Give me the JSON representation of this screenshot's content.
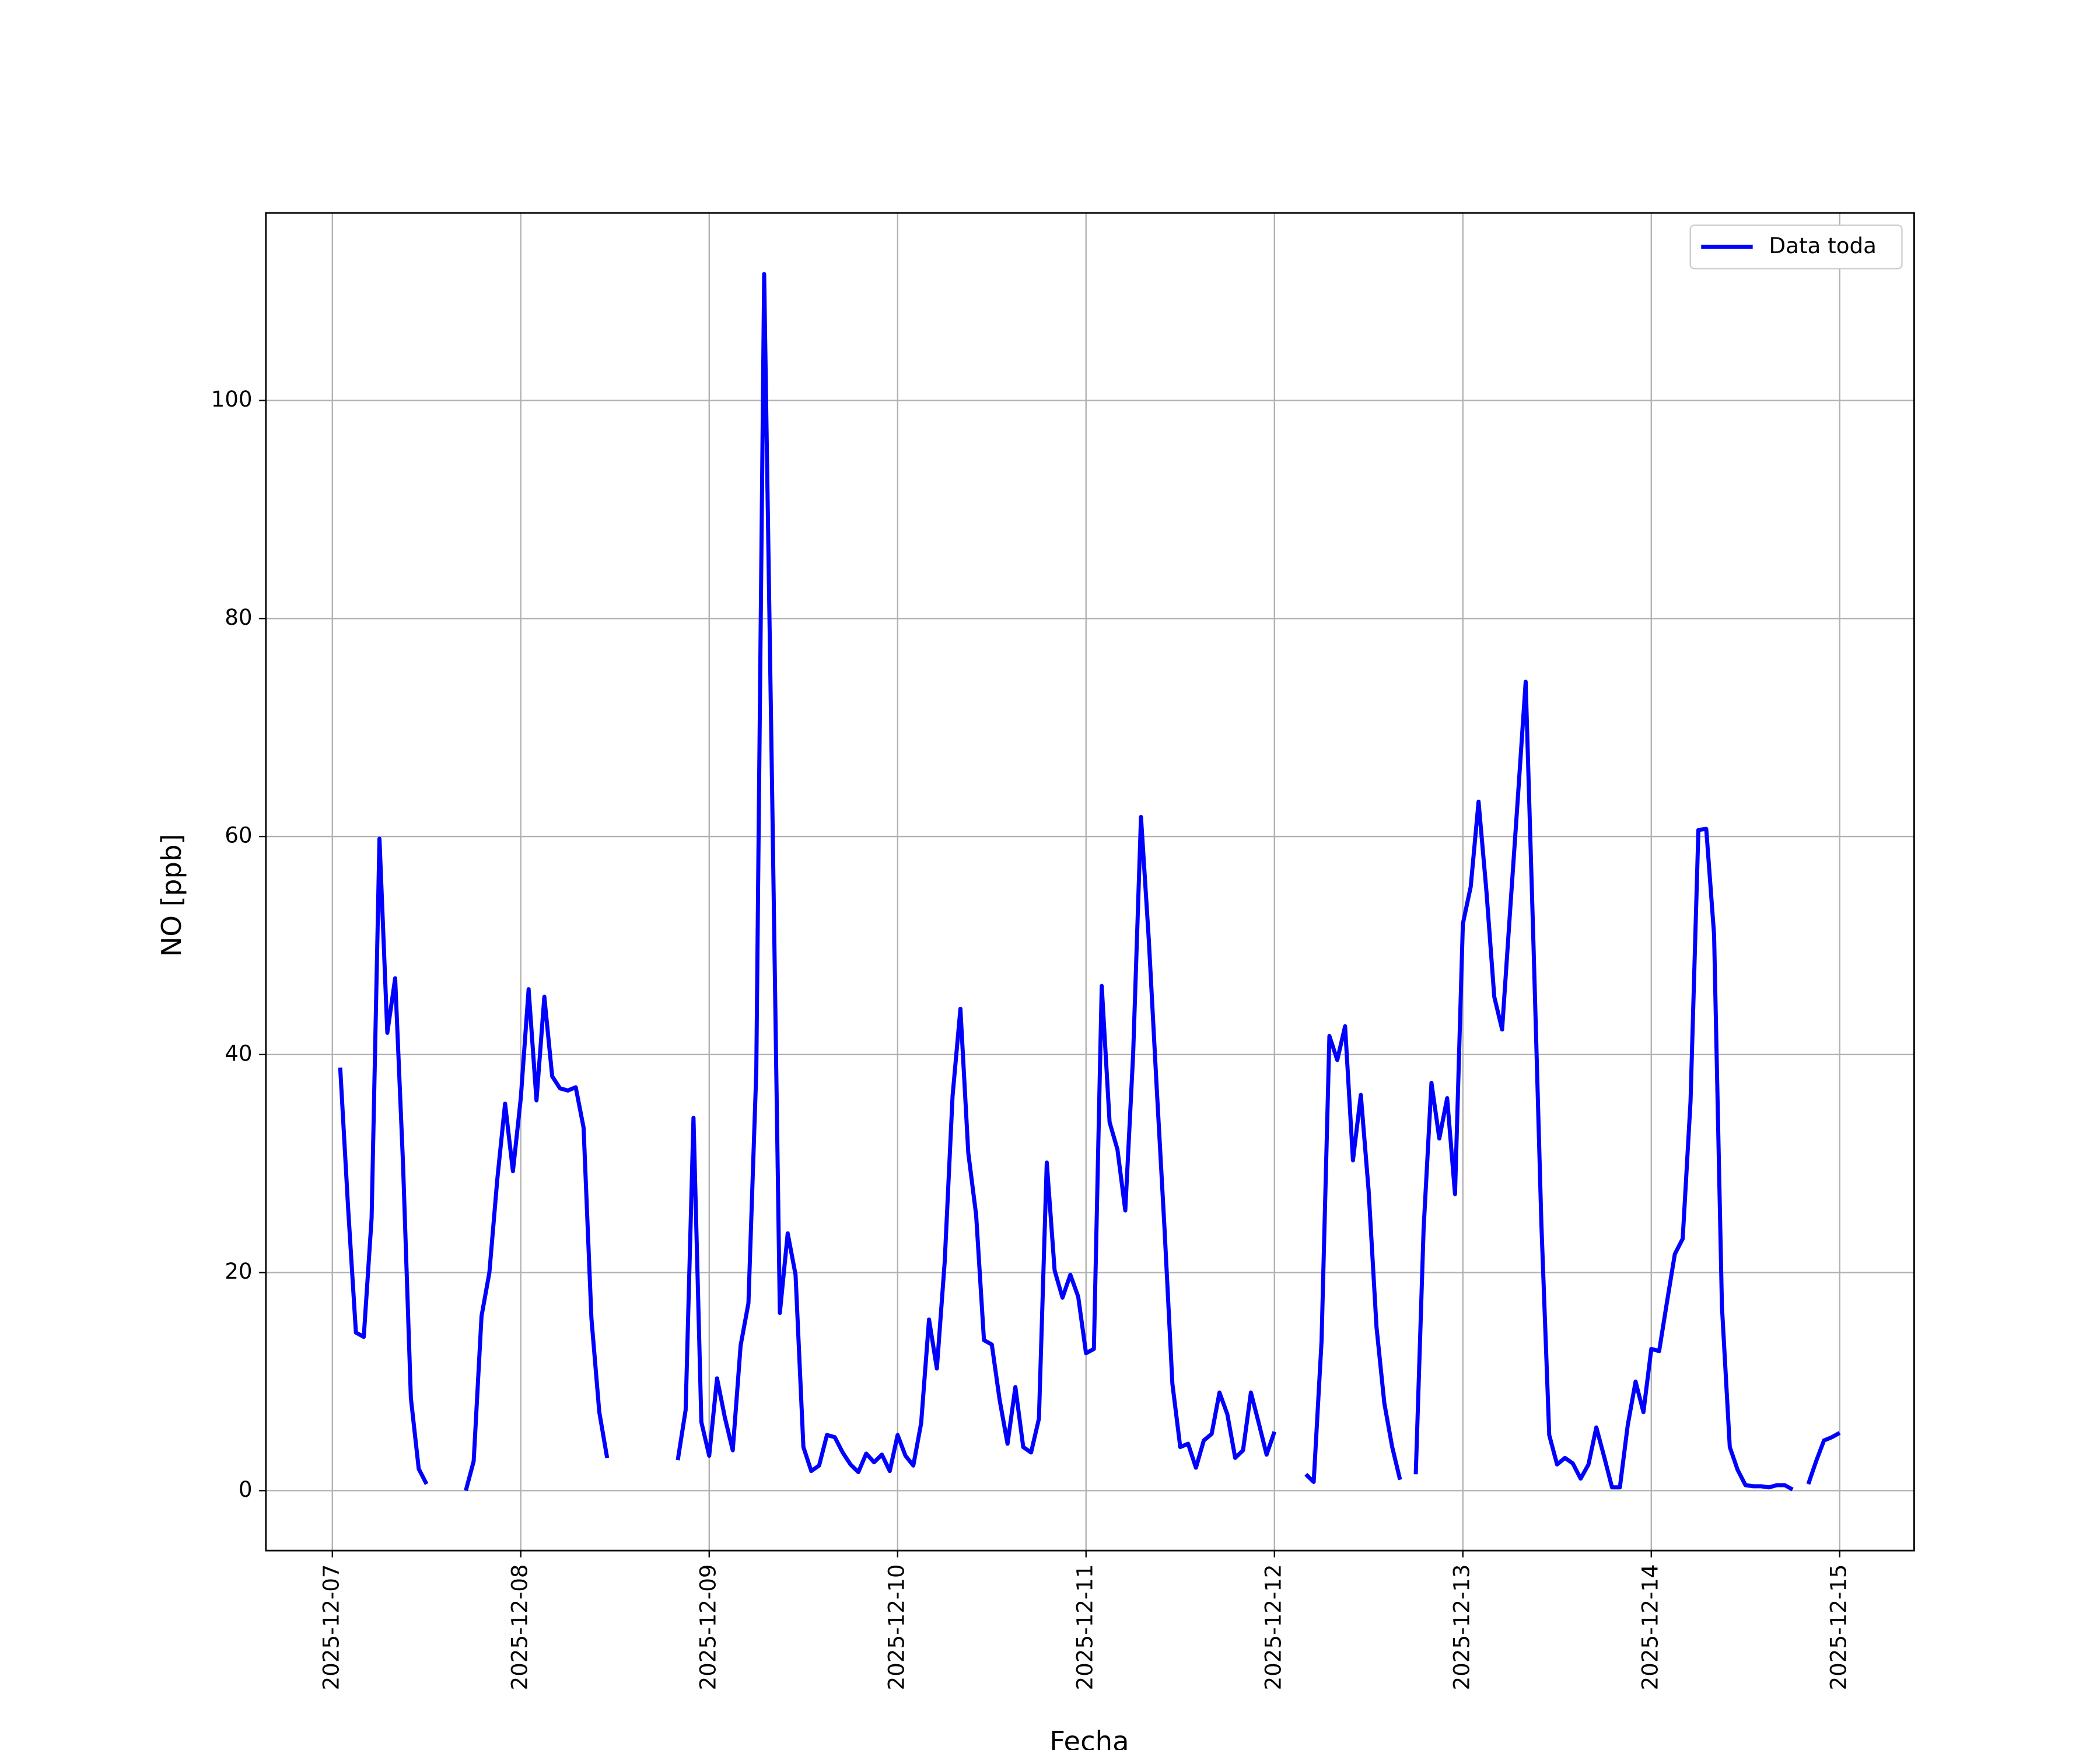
{
  "chart_data": {
    "type": "line",
    "xlabel": "Fecha",
    "ylabel": "NO [ppb]",
    "x": [
      "2025-12-07 01:00",
      "2025-12-07 02:00",
      "2025-12-07 03:00",
      "2025-12-07 04:00",
      "2025-12-07 05:00",
      "2025-12-07 06:00",
      "2025-12-07 07:00",
      "2025-12-07 08:00",
      "2025-12-07 09:00",
      "2025-12-07 10:00",
      "2025-12-07 11:00",
      "2025-12-07 12:00",
      "2025-12-07 13:00",
      "2025-12-07 14:00",
      "2025-12-07 15:00",
      "2025-12-07 16:00",
      "2025-12-07 17:00",
      "2025-12-07 18:00",
      "2025-12-07 19:00",
      "2025-12-07 20:00",
      "2025-12-07 21:00",
      "2025-12-07 22:00",
      "2025-12-07 23:00",
      "2025-12-08 00:00",
      "2025-12-08 01:00",
      "2025-12-08 02:00",
      "2025-12-08 03:00",
      "2025-12-08 04:00",
      "2025-12-08 05:00",
      "2025-12-08 06:00",
      "2025-12-08 07:00",
      "2025-12-08 08:00",
      "2025-12-08 09:00",
      "2025-12-08 10:00",
      "2025-12-08 11:00",
      "2025-12-08 12:00",
      "2025-12-08 13:00",
      "2025-12-08 14:00",
      "2025-12-08 15:00",
      "2025-12-08 16:00",
      "2025-12-08 17:00",
      "2025-12-08 18:00",
      "2025-12-08 19:00",
      "2025-12-08 20:00",
      "2025-12-08 21:00",
      "2025-12-08 22:00",
      "2025-12-08 23:00",
      "2025-12-09 00:00",
      "2025-12-09 01:00",
      "2025-12-09 02:00",
      "2025-12-09 03:00",
      "2025-12-09 04:00",
      "2025-12-09 05:00",
      "2025-12-09 06:00",
      "2025-12-09 07:00",
      "2025-12-09 08:00",
      "2025-12-09 09:00",
      "2025-12-09 10:00",
      "2025-12-09 11:00",
      "2025-12-09 12:00",
      "2025-12-09 13:00",
      "2025-12-09 14:00",
      "2025-12-09 15:00",
      "2025-12-09 16:00",
      "2025-12-09 17:00",
      "2025-12-09 18:00",
      "2025-12-09 19:00",
      "2025-12-09 20:00",
      "2025-12-09 21:00",
      "2025-12-09 22:00",
      "2025-12-09 23:00",
      "2025-12-10 00:00",
      "2025-12-10 01:00",
      "2025-12-10 02:00",
      "2025-12-10 03:00",
      "2025-12-10 04:00",
      "2025-12-10 05:00",
      "2025-12-10 06:00",
      "2025-12-10 07:00",
      "2025-12-10 08:00",
      "2025-12-10 09:00",
      "2025-12-10 10:00",
      "2025-12-10 11:00",
      "2025-12-10 12:00",
      "2025-12-10 13:00",
      "2025-12-10 14:00",
      "2025-12-10 15:00",
      "2025-12-10 16:00",
      "2025-12-10 17:00",
      "2025-12-10 18:00",
      "2025-12-10 19:00",
      "2025-12-10 20:00",
      "2025-12-10 21:00",
      "2025-12-10 22:00",
      "2025-12-10 23:00",
      "2025-12-11 00:00",
      "2025-12-11 01:00",
      "2025-12-11 02:00",
      "2025-12-11 03:00",
      "2025-12-11 04:00",
      "2025-12-11 05:00",
      "2025-12-11 06:00",
      "2025-12-11 07:00",
      "2025-12-11 08:00",
      "2025-12-11 09:00",
      "2025-12-11 10:00",
      "2025-12-11 11:00",
      "2025-12-11 12:00",
      "2025-12-11 13:00",
      "2025-12-11 14:00",
      "2025-12-11 15:00",
      "2025-12-11 16:00",
      "2025-12-11 17:00",
      "2025-12-11 18:00",
      "2025-12-11 19:00",
      "2025-12-11 20:00",
      "2025-12-11 21:00",
      "2025-12-11 22:00",
      "2025-12-11 23:00",
      "2025-12-12 00:00",
      "2025-12-12 01:00",
      "2025-12-12 02:00",
      "2025-12-12 03:00",
      "2025-12-12 04:00",
      "2025-12-12 05:00",
      "2025-12-12 06:00",
      "2025-12-12 07:00",
      "2025-12-12 08:00",
      "2025-12-12 09:00",
      "2025-12-12 10:00",
      "2025-12-12 11:00",
      "2025-12-12 12:00",
      "2025-12-12 13:00",
      "2025-12-12 14:00",
      "2025-12-12 15:00",
      "2025-12-12 16:00",
      "2025-12-12 17:00",
      "2025-12-12 18:00",
      "2025-12-12 19:00",
      "2025-12-12 20:00",
      "2025-12-12 21:00",
      "2025-12-12 22:00",
      "2025-12-12 23:00",
      "2025-12-13 00:00",
      "2025-12-13 01:00",
      "2025-12-13 02:00",
      "2025-12-13 03:00",
      "2025-12-13 04:00",
      "2025-12-13 05:00",
      "2025-12-13 06:00",
      "2025-12-13 07:00",
      "2025-12-13 08:00",
      "2025-12-13 09:00",
      "2025-12-13 10:00",
      "2025-12-13 11:00",
      "2025-12-13 12:00",
      "2025-12-13 13:00",
      "2025-12-13 14:00",
      "2025-12-13 15:00",
      "2025-12-13 16:00",
      "2025-12-13 17:00",
      "2025-12-13 18:00",
      "2025-12-13 19:00",
      "2025-12-13 20:00",
      "2025-12-13 21:00",
      "2025-12-13 22:00",
      "2025-12-13 23:00",
      "2025-12-14 00:00",
      "2025-12-14 01:00",
      "2025-12-14 02:00",
      "2025-12-14 03:00",
      "2025-12-14 04:00",
      "2025-12-14 05:00",
      "2025-12-14 06:00",
      "2025-12-14 07:00",
      "2025-12-14 08:00",
      "2025-12-14 09:00",
      "2025-12-14 10:00",
      "2025-12-14 11:00",
      "2025-12-14 12:00",
      "2025-12-14 13:00",
      "2025-12-14 14:00",
      "2025-12-14 15:00",
      "2025-12-14 16:00",
      "2025-12-14 17:00",
      "2025-12-14 18:00",
      "2025-12-14 19:00",
      "2025-12-14 20:00",
      "2025-12-14 21:00",
      "2025-12-14 22:00",
      "2025-12-14 23:00",
      "2025-12-15 00:00"
    ],
    "series": [
      {
        "name": "Data toda",
        "color": "#0000ff",
        "values": [
          38.8,
          26,
          14.5,
          14.1,
          25,
          59.8,
          42,
          47,
          30,
          8.5,
          2,
          0.6,
          null,
          null,
          null,
          null,
          0,
          2.7,
          16,
          20,
          28.5,
          35.5,
          29.3,
          36,
          46,
          35.8,
          45.3,
          38,
          36.9,
          36.7,
          37,
          33.3,
          15.8,
          7.2,
          3,
          null,
          null,
          null,
          null,
          null,
          null,
          null,
          null,
          2.8,
          7.4,
          34.2,
          6.3,
          3.2,
          10.3,
          6.7,
          3.7,
          13.3,
          17.2,
          38.5,
          111.6,
          65,
          16.3,
          23.6,
          19.8,
          4,
          1.8,
          2.3,
          5.1,
          4.9,
          3.5,
          2.4,
          1.7,
          3.4,
          2.6,
          3.3,
          1.8,
          5.1,
          3.2,
          2.3,
          6.2,
          15.7,
          11.2,
          21,
          36.2,
          44.2,
          31,
          25.3,
          13.8,
          13.4,
          8.3,
          4.3,
          9.5,
          4,
          3.5,
          6.6,
          30.1,
          20.2,
          17.7,
          19.8,
          17.8,
          12.6,
          13,
          46.3,
          33.8,
          31.3,
          25.7,
          40,
          61.8,
          50.5,
          37,
          24,
          9.8,
          4,
          4.3,
          2.1,
          4.6,
          5.2,
          9,
          7,
          3,
          3.7,
          9,
          6.2,
          3.3,
          5.4,
          null,
          null,
          null,
          1.5,
          0.8,
          13.7,
          41.7,
          39.5,
          42.6,
          30.3,
          36.3,
          27.5,
          15,
          8,
          4,
          1,
          null,
          1.5,
          24,
          37.4,
          32.3,
          36,
          27.2,
          52,
          55.4,
          63.2,
          55,
          45.3,
          42.3,
          53,
          63.5,
          74.2,
          50,
          24.5,
          5.1,
          2.4,
          3,
          2.5,
          1.1,
          2.4,
          5.8,
          3.1,
          0.3,
          0.3,
          6,
          10,
          7.2,
          13,
          12.8,
          17.3,
          21.7,
          23.1,
          35.7,
          60.6,
          60.7,
          51,
          16.9,
          4,
          1.9,
          0.5,
          0.4,
          0.4,
          0.3,
          0.5,
          0.5,
          0.1,
          null,
          0.6,
          2.7,
          4.6,
          4.9,
          5.3
        ]
      }
    ],
    "xlim": [
      "2025-12-06 15:32",
      "2025-12-15 09:29"
    ],
    "xticks": [
      "2025-12-07",
      "2025-12-08",
      "2025-12-09",
      "2025-12-10",
      "2025-12-11",
      "2025-12-12",
      "2025-12-13",
      "2025-12-14",
      "2025-12-15"
    ],
    "ylim": [
      -5.5,
      117.2
    ],
    "yticks": [
      0,
      20,
      40,
      60,
      80,
      100
    ],
    "grid": true,
    "legend": "upper right"
  }
}
